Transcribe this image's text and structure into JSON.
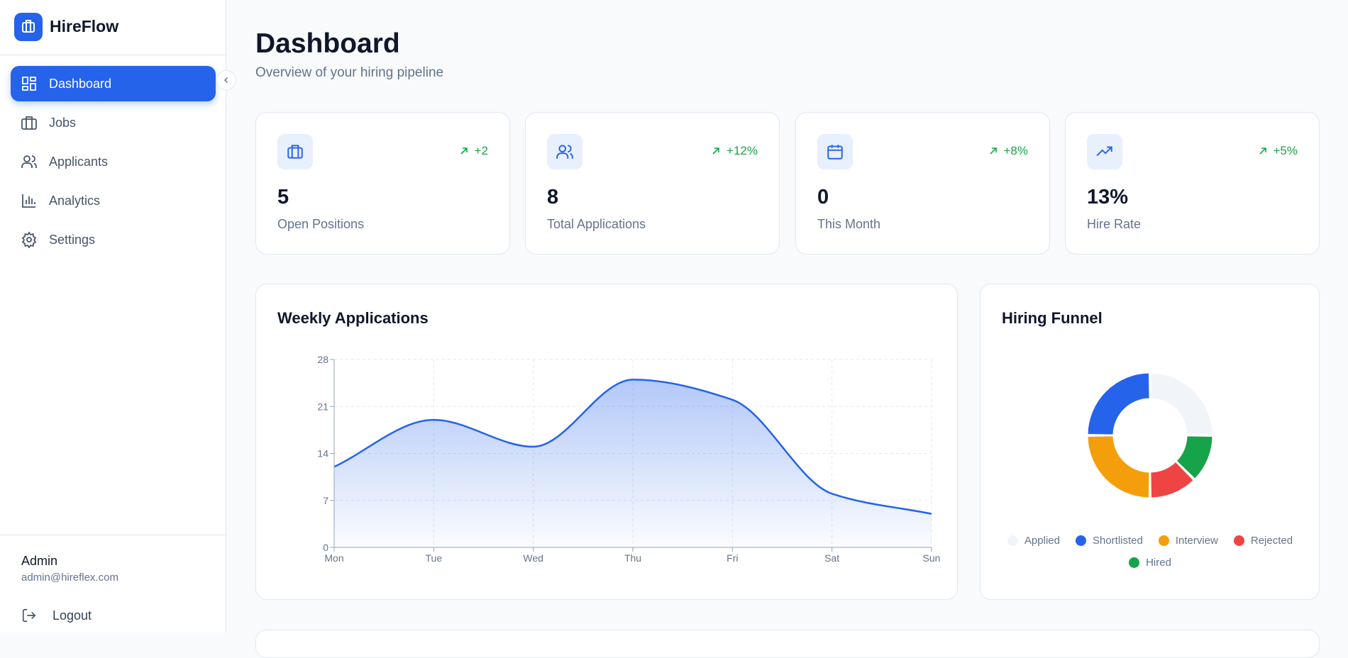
{
  "brand": "HireFlow",
  "nav": [
    {
      "label": "Dashboard",
      "active": true
    },
    {
      "label": "Jobs",
      "active": false
    },
    {
      "label": "Applicants",
      "active": false
    },
    {
      "label": "Analytics",
      "active": false
    },
    {
      "label": "Settings",
      "active": false
    }
  ],
  "user": {
    "name": "Admin",
    "email": "admin@hireflex.com"
  },
  "logout": "Logout",
  "header": {
    "title": "Dashboard",
    "subtitle": "Overview of your hiring pipeline"
  },
  "stats": [
    {
      "value": "5",
      "label": "Open Positions",
      "change": "+2"
    },
    {
      "value": "8",
      "label": "Total Applications",
      "change": "+12%"
    },
    {
      "value": "0",
      "label": "This Month",
      "change": "+8%"
    },
    {
      "value": "13%",
      "label": "Hire Rate",
      "change": "+5%"
    }
  ],
  "chart_data": [
    {
      "type": "area",
      "title": "Weekly Applications",
      "categories": [
        "Mon",
        "Tue",
        "Wed",
        "Thu",
        "Fri",
        "Sat",
        "Sun"
      ],
      "values": [
        12,
        19,
        15,
        25,
        22,
        8,
        5
      ],
      "color": "#2563eb",
      "ylim": [
        0,
        28
      ],
      "yticks": [
        0,
        7,
        14,
        21,
        28
      ],
      "grid": true
    },
    {
      "type": "donut",
      "title": "Hiring Funnel",
      "categories": [
        "Applied",
        "Shortlisted",
        "Interview",
        "Rejected",
        "Hired"
      ],
      "values": [
        2,
        2,
        2,
        1,
        1
      ],
      "colors": [
        "#f1f5f9",
        "#2563eb",
        "#f59e0b",
        "#ef4444",
        "#16a34a"
      ],
      "legend": "bottom"
    }
  ]
}
